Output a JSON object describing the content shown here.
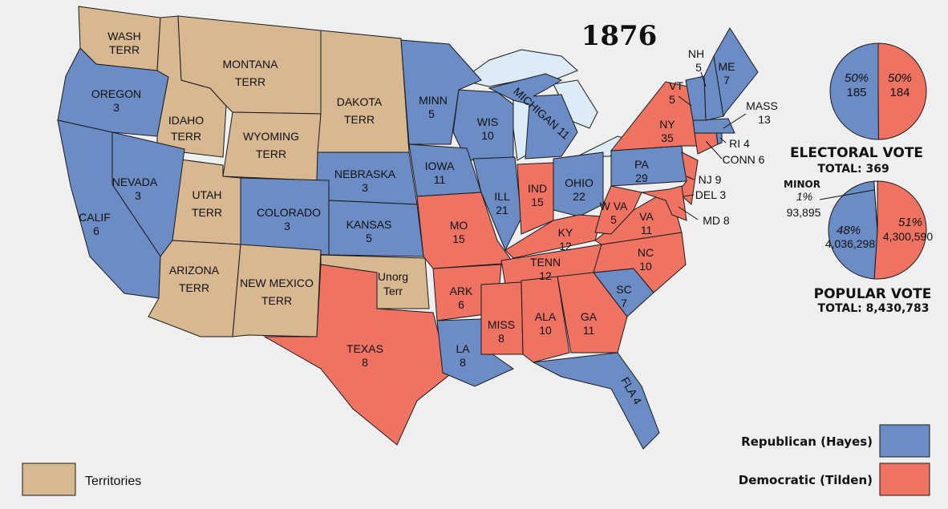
{
  "title": "1876",
  "colors": {
    "republican": "#6b8cc4",
    "democratic": "#ef7363",
    "territory": "#d7b891",
    "water": "#dcecf7"
  },
  "states": {
    "wash": {
      "l1": "WASH",
      "l2": "TERR",
      "party": "territory"
    },
    "oregon": {
      "l1": "OREGON",
      "l2": "3",
      "party": "republican"
    },
    "idaho": {
      "l1": "IDAHO",
      "l2": "TERR",
      "party": "territory"
    },
    "montana": {
      "l1": "MONTANA",
      "l2": "TERR",
      "party": "territory"
    },
    "wyoming": {
      "l1": "WYOMING",
      "l2": "TERR",
      "party": "territory"
    },
    "dakota": {
      "l1": "DAKOTA",
      "l2": "TERR",
      "party": "territory"
    },
    "nevada": {
      "l1": "NEVADA",
      "l2": "3",
      "party": "republican"
    },
    "calif": {
      "l1": "CALIF",
      "l2": "6",
      "party": "republican"
    },
    "utah": {
      "l1": "UTAH",
      "l2": "TERR",
      "party": "territory"
    },
    "colorado": {
      "l1": "COLORADO",
      "l2": "3",
      "party": "republican"
    },
    "nebraska": {
      "l1": "NEBRASKA",
      "l2": "3",
      "party": "republican"
    },
    "kansas": {
      "l1": "KANSAS",
      "l2": "5",
      "party": "republican"
    },
    "arizona": {
      "l1": "ARIZONA",
      "l2": "TERR",
      "party": "territory"
    },
    "newmexico": {
      "l1": "NEW MEXICO",
      "l2": "TERR",
      "party": "territory"
    },
    "unorg": {
      "l1": "Unorg",
      "l2": "Terr",
      "party": "territory"
    },
    "texas": {
      "l1": "TEXAS",
      "l2": "8",
      "party": "democratic"
    },
    "minn": {
      "l1": "MINN",
      "l2": "5",
      "party": "republican"
    },
    "wis": {
      "l1": "WIS",
      "l2": "10",
      "party": "republican"
    },
    "iowa": {
      "l1": "IOWA",
      "l2": "11",
      "party": "republican"
    },
    "mo": {
      "l1": "MO",
      "l2": "15",
      "party": "democratic"
    },
    "ill": {
      "l1": "ILL",
      "l2": "21",
      "party": "republican"
    },
    "michigan": {
      "l1": "MICHIGAN 11",
      "party": "republican"
    },
    "ind": {
      "l1": "IND",
      "l2": "15",
      "party": "democratic"
    },
    "ohio": {
      "l1": "OHIO",
      "l2": "22",
      "party": "republican"
    },
    "ky": {
      "l1": "KY",
      "l2": "12",
      "party": "democratic"
    },
    "tenn": {
      "l1": "TENN",
      "l2": "12",
      "party": "democratic"
    },
    "ark": {
      "l1": "ARK",
      "l2": "6",
      "party": "democratic"
    },
    "la": {
      "l1": "LA",
      "l2": "8",
      "party": "republican"
    },
    "miss": {
      "l1": "MISS",
      "l2": "8",
      "party": "democratic"
    },
    "ala": {
      "l1": "ALA",
      "l2": "10",
      "party": "democratic"
    },
    "ga": {
      "l1": "GA",
      "l2": "11",
      "party": "democratic"
    },
    "fla": {
      "l1": "FLA 4",
      "party": "republican"
    },
    "sc": {
      "l1": "SC",
      "l2": "7",
      "party": "republican"
    },
    "nc": {
      "l1": "NC",
      "l2": "10",
      "party": "democratic"
    },
    "va": {
      "l1": "VA",
      "l2": "11",
      "party": "democratic"
    },
    "wva": {
      "l1": "W VA",
      "l2": "5",
      "party": "democratic"
    },
    "pa": {
      "l1": "PA",
      "l2": "29",
      "party": "republican"
    },
    "ny": {
      "l1": "NY",
      "l2": "35",
      "party": "democratic"
    },
    "nj": {
      "l1": "NJ 9",
      "party": "democratic"
    },
    "del": {
      "l1": "DEL 3",
      "party": "democratic"
    },
    "md": {
      "l1": "MD 8",
      "party": "democratic"
    },
    "conn": {
      "l1": "CONN 6",
      "party": "democratic"
    },
    "ri": {
      "l1": "RI 4",
      "party": "republican"
    },
    "mass": {
      "l1": "MASS",
      "l2": "13",
      "party": "republican"
    },
    "vt": {
      "l1": "VT",
      "l2": "5",
      "party": "republican"
    },
    "nh": {
      "l1": "NH",
      "l2": "5",
      "party": "republican"
    },
    "me": {
      "l1": "ME",
      "l2": "7",
      "party": "republican"
    }
  },
  "electoral": {
    "rep_pct": "50%",
    "rep_votes": "185",
    "dem_pct": "50%",
    "dem_votes": "184",
    "caption": "ELECTORAL VOTE",
    "total": "TOTAL:  369",
    "rep_share": 185,
    "dem_share": 184
  },
  "popular": {
    "minor_label": "MINOR",
    "minor_pct": "1%",
    "minor_votes": "93,895",
    "rep_pct": "48%",
    "rep_votes": "4,036,298",
    "dem_pct": "51%",
    "dem_votes": "4,300,590",
    "caption": "POPULAR VOTE",
    "total": "TOTAL:  8,430,783"
  },
  "legend": {
    "republican": "Republican (Hayes)",
    "democratic": "Democratic (Tilden)",
    "territories": "Territories"
  }
}
